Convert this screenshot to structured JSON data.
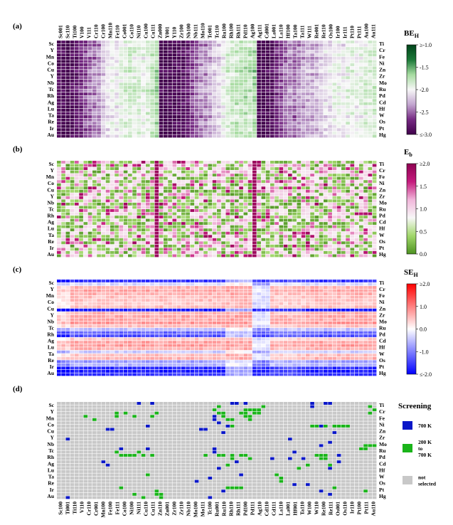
{
  "figure": {
    "panel_labels": [
      "(a)",
      "(b)",
      "(c)",
      "(d)"
    ],
    "screening_title": "Screening",
    "legend": [
      {
        "label": "700 K",
        "color": "#0a17c8"
      },
      {
        "label": "200 K to 700 K",
        "label_lines": [
          "200 K",
          "to",
          "700 K"
        ],
        "color": "#1ab41a"
      },
      {
        "label": "not selected",
        "label_lines": [
          "not",
          "selected"
        ],
        "color": "#c8c8c8"
      }
    ]
  },
  "chart_data": [
    {
      "type": "heatmap",
      "panel": "(a)",
      "colorbar_title": "BE",
      "colorbar_subscript": "H",
      "colorbar_ticks": [
        "≥-1.0",
        "-1.5",
        "-2.0",
        "-2.5",
        "≤-3.0"
      ],
      "vmin": -3.0,
      "vmax": -1.0,
      "colormap": [
        "#40004b",
        "#762a83",
        "#c2a5cf",
        "#f7f7f7",
        "#a6dba0",
        "#1b7837",
        "#00441b"
      ],
      "x_top_labels": [
        "Sc001",
        "Sc110",
        "Ti100",
        "V100",
        "V111",
        "Cr110",
        "Cr100",
        "Mn110",
        "Fe110",
        "Co001",
        "Co110",
        "Ni110",
        "Cu100",
        "Cu111",
        "Zn000",
        "Y001",
        "Y110",
        "Zr100",
        "Nb100",
        "Nb111",
        "Mo110",
        "Tc001",
        "Tc110",
        "Ru100",
        "Rh100",
        "Rh111",
        "Pd110",
        "Ag100",
        "Ag111",
        "Cd001",
        "La001",
        "La110",
        "Hf100",
        "Ta100",
        "Ta111",
        "W111",
        "Re001",
        "Re110",
        "Os100",
        "Ir100",
        "Ir111",
        "Pt110",
        "Pt111",
        "Au100",
        "Au111"
      ],
      "rows_left": [
        "Sc",
        "Y",
        "Mn",
        "Co",
        "Cu",
        "Y",
        "Nb",
        "Tc",
        "Rh",
        "Ag",
        "Lu",
        "Ta",
        "Re",
        "Ir",
        "Au"
      ],
      "rows_right": [
        "Ti",
        "Cr",
        "Fe",
        "Ni",
        "Zn",
        "Zr",
        "Mo",
        "Ru",
        "Pd",
        "Cd",
        "Hf",
        "W",
        "Os",
        "Pt",
        "Hg"
      ],
      "n_cols": 72,
      "n_rows": 30,
      "column_profile": [
        -2.9,
        -2.95,
        -3.0,
        -2.9,
        -2.8,
        -2.7,
        -2.6,
        -2.5,
        -2.45,
        -2.4,
        -2.2,
        -2.1,
        -2.0,
        -2.05,
        -1.95,
        -1.9,
        -1.85,
        -1.9,
        -1.9,
        -1.95,
        -1.9,
        -1.8,
        -1.7,
        -3.0,
        -3.0,
        -3.0,
        -2.95,
        -2.9,
        -2.9,
        -2.8,
        -2.6,
        -2.5,
        -2.4,
        -2.4,
        -2.3,
        -2.2,
        -2.15,
        -2.0,
        -1.9,
        -1.85,
        -1.8,
        -1.8,
        -1.75,
        -1.8,
        -1.7,
        -3.0,
        -3.0,
        -2.95,
        -2.9,
        -2.7,
        -2.6,
        -2.5,
        -2.4,
        -2.5,
        -2.4,
        -2.35,
        -2.3,
        -2.3,
        -2.25,
        -2.2,
        -2.1,
        -2.1,
        -2.0,
        -2.0,
        -2.05,
        -1.95,
        -1.95,
        -2.0,
        -1.95,
        -1.9,
        -1.9,
        -1.85
      ]
    },
    {
      "type": "heatmap",
      "panel": "(b)",
      "colorbar_title": "E",
      "colorbar_subscript": "b",
      "colorbar_ticks": [
        "≥2.0",
        "1.5",
        "1.0",
        "0.5",
        "0.0"
      ],
      "vmin": 0.0,
      "vmax": 2.0,
      "colormap": [
        "#4d9221",
        "#a1d76a",
        "#f7f7f7",
        "#f1b6da",
        "#c51b7d",
        "#8e0152"
      ],
      "rows_left": [
        "Sc",
        "Y",
        "Mn",
        "Co",
        "Cu",
        "Y",
        "Nb",
        "Tc",
        "Rh",
        "Ag",
        "Lu",
        "Ta",
        "Re",
        "Ir",
        "Au"
      ],
      "rows_right": [
        "Ti",
        "Cr",
        "Fe",
        "Ni",
        "Zn",
        "Zr",
        "Mo",
        "Ru",
        "Pd",
        "Cd",
        "Hf",
        "W",
        "Os",
        "Pt",
        "Hg"
      ],
      "n_cols": 72,
      "n_rows": 30,
      "emphasized_columns": [
        22,
        44
      ]
    },
    {
      "type": "heatmap",
      "panel": "(c)",
      "colorbar_title": "SE",
      "colorbar_subscript": "H",
      "colorbar_ticks": [
        "≥2.0",
        "1.0",
        "0.0",
        "-1.0",
        "≤-2.0"
      ],
      "vmin": -2.0,
      "vmax": 2.0,
      "colormap": [
        "#0000ff",
        "#8080ff",
        "#ffffff",
        "#ff8080",
        "#ff0000"
      ],
      "rows_left": [
        "Sc",
        "Y",
        "Mn",
        "Co",
        "Cu",
        "Y",
        "Nb",
        "Tc",
        "Rh",
        "Ag",
        "Lu",
        "Ta",
        "Re",
        "Ir",
        "Au"
      ],
      "rows_right": [
        "Ti",
        "Cr",
        "Fe",
        "Ni",
        "Zn",
        "Zr",
        "Mo",
        "Ru",
        "Pd",
        "Cd",
        "Hf",
        "W",
        "Os",
        "Pt",
        "Hg"
      ],
      "n_cols": 72,
      "n_rows": 30,
      "row_profile": [
        -1.6,
        -0.3,
        0.6,
        0.7,
        0.6,
        0.5,
        0.5,
        0.4,
        0.5,
        -1.8,
        0.6,
        0.7,
        0.7,
        0.8,
        0.5,
        -0.5,
        -1.2,
        -1.4,
        0.4,
        0.7,
        0.8,
        0.6,
        -0.4,
        0.5,
        0.6,
        -0.8,
        -0.6,
        -1.7,
        -1.8,
        -1.6
      ]
    },
    {
      "type": "heatmap",
      "panel": "(d)",
      "categories": [
        "not selected",
        "200 K to 700 K",
        "700 K"
      ],
      "x_bottom_labels": [
        "Sc100",
        "Ti001",
        "Ti110",
        "V110",
        "Cr110",
        "Cr001",
        "Mn100",
        "Fe100",
        "Fe111",
        "Co100",
        "Ni100",
        "Ni111",
        "Cu110",
        "Cu111",
        "Zn110",
        "Zn001",
        "Zr100",
        "Zr110",
        "Nb110",
        "Mo100",
        "Mo111",
        "Tc100",
        "Ru001",
        "Ru110",
        "Rh110",
        "Rh111",
        "Pd100",
        "Pd111",
        "Ag110",
        "Cd110",
        "Cd111",
        "La110",
        "La001",
        "Hf001",
        "Ta110",
        "W100",
        "W110",
        "Re100",
        "Re111",
        "Os001",
        "Os110",
        "Ir110",
        "Pt100",
        "Pt111",
        "Au110"
      ],
      "rows_left": [
        "Sc",
        "Y",
        "Mn",
        "Co",
        "Cu",
        "Y",
        "Nb",
        "Tc",
        "Rh",
        "Ag",
        "Lu",
        "Ta",
        "Re",
        "Ir",
        "Au"
      ],
      "rows_right": [
        "Ti",
        "Cr",
        "Fe",
        "Ni",
        "Zn",
        "Zr",
        "Mo",
        "Ru",
        "Pd",
        "Cd",
        "Hf",
        "W",
        "Os",
        "Pt",
        "Hg"
      ],
      "n_cols": 72,
      "n_rows": 30,
      "selected_cells_700K": [
        [
          0,
          18
        ],
        [
          0,
          21
        ],
        [
          0,
          39
        ],
        [
          0,
          40
        ],
        [
          0,
          42
        ],
        [
          0,
          57
        ],
        [
          0,
          60
        ],
        [
          0,
          61
        ],
        [
          1,
          57
        ],
        [
          4,
          35
        ],
        [
          5,
          35
        ],
        [
          6,
          36
        ],
        [
          7,
          20
        ],
        [
          7,
          38
        ],
        [
          7,
          59
        ],
        [
          8,
          11
        ],
        [
          8,
          12
        ],
        [
          8,
          32
        ],
        [
          8,
          33
        ],
        [
          9,
          37
        ],
        [
          9,
          62
        ],
        [
          11,
          2
        ],
        [
          11,
          52
        ],
        [
          12,
          61
        ],
        [
          13,
          59
        ],
        [
          14,
          14
        ],
        [
          14,
          20
        ],
        [
          14,
          35
        ],
        [
          15,
          35
        ],
        [
          15,
          53
        ],
        [
          16,
          63
        ],
        [
          17,
          48
        ],
        [
          17,
          52
        ],
        [
          17,
          55
        ],
        [
          18,
          10
        ],
        [
          18,
          40
        ],
        [
          18,
          63
        ],
        [
          19,
          11
        ],
        [
          20,
          36
        ],
        [
          20,
          61
        ],
        [
          22,
          41
        ],
        [
          23,
          34
        ],
        [
          24,
          31
        ],
        [
          25,
          53
        ],
        [
          25,
          56
        ],
        [
          27,
          37
        ],
        [
          27,
          59
        ],
        [
          28,
          61
        ],
        [
          29,
          2
        ],
        [
          29,
          34
        ]
      ],
      "selected_cells_200_700K": [
        [
          1,
          36
        ],
        [
          1,
          46
        ],
        [
          1,
          70
        ],
        [
          2,
          35
        ],
        [
          2,
          42
        ],
        [
          2,
          43
        ],
        [
          2,
          44
        ],
        [
          2,
          45
        ],
        [
          2,
          71
        ],
        [
          3,
          13
        ],
        [
          3,
          15
        ],
        [
          3,
          22
        ],
        [
          3,
          36
        ],
        [
          3,
          37
        ],
        [
          3,
          41
        ],
        [
          3,
          42
        ],
        [
          3,
          44
        ],
        [
          3,
          45
        ],
        [
          3,
          70
        ],
        [
          4,
          6
        ],
        [
          4,
          13
        ],
        [
          4,
          17
        ],
        [
          4,
          21
        ],
        [
          4,
          37
        ],
        [
          4,
          42
        ],
        [
          4,
          43
        ],
        [
          5,
          8
        ],
        [
          5,
          38
        ],
        [
          5,
          39
        ],
        [
          5,
          43
        ],
        [
          7,
          39
        ],
        [
          7,
          57
        ],
        [
          7,
          58
        ],
        [
          7,
          60
        ],
        [
          7,
          62
        ],
        [
          7,
          63
        ],
        [
          7,
          64
        ],
        [
          7,
          65
        ],
        [
          13,
          69
        ],
        [
          13,
          70
        ],
        [
          13,
          71
        ],
        [
          14,
          68
        ],
        [
          14,
          69
        ],
        [
          15,
          13
        ],
        [
          15,
          18
        ],
        [
          16,
          14
        ],
        [
          16,
          15
        ],
        [
          16,
          16
        ],
        [
          16,
          17
        ],
        [
          16,
          19
        ],
        [
          16,
          21
        ],
        [
          16,
          33
        ],
        [
          16,
          36
        ],
        [
          16,
          37
        ],
        [
          16,
          39
        ],
        [
          16,
          41
        ],
        [
          16,
          42
        ],
        [
          16,
          58
        ],
        [
          16,
          59
        ],
        [
          16,
          60
        ],
        [
          17,
          39
        ],
        [
          17,
          43
        ],
        [
          17,
          59
        ],
        [
          17,
          60
        ],
        [
          19,
          38
        ],
        [
          19,
          56
        ],
        [
          19,
          61
        ],
        [
          20,
          54
        ],
        [
          22,
          20
        ],
        [
          22,
          49
        ],
        [
          23,
          50
        ],
        [
          24,
          50
        ],
        [
          26,
          14
        ],
        [
          26,
          38
        ],
        [
          26,
          39
        ],
        [
          26,
          40
        ],
        [
          26,
          41
        ],
        [
          26,
          62
        ],
        [
          27,
          22
        ],
        [
          27,
          69
        ],
        [
          28,
          17
        ],
        [
          28,
          22
        ],
        [
          28,
          23
        ],
        [
          29,
          19
        ],
        [
          29,
          23
        ]
      ]
    }
  ]
}
